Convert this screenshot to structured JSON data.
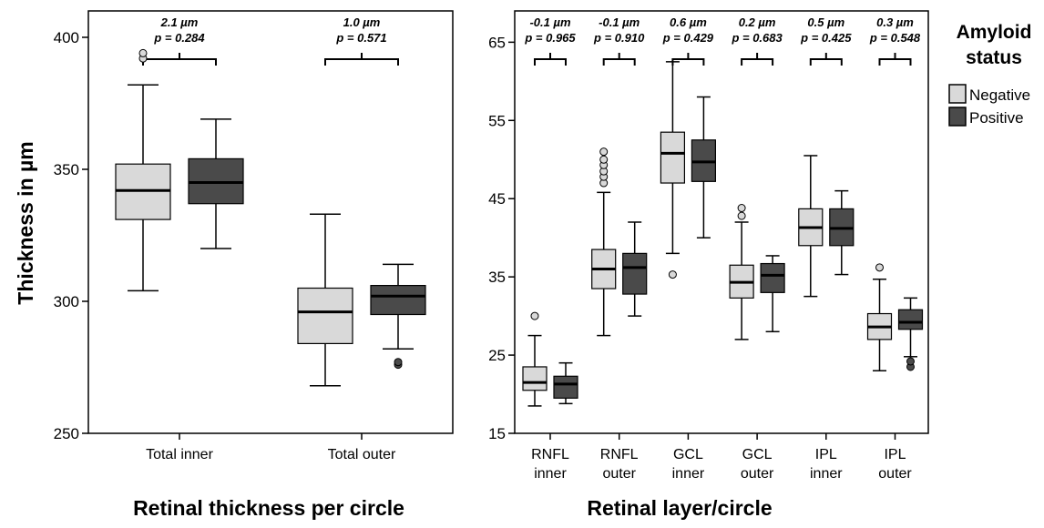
{
  "colors": {
    "negative": "#d9d9d9",
    "positive": "#4a4a4a",
    "outline": "#000000"
  },
  "ylabel": "Thickness in µm",
  "legend": {
    "title_line1": "Amyloid",
    "title_line2": "status",
    "items": [
      {
        "label": "Negative",
        "color": "#d9d9d9"
      },
      {
        "label": "Positive",
        "color": "#4a4a4a"
      }
    ]
  },
  "chart_data": [
    {
      "type": "boxplot",
      "xlabel": "Retinal thickness per circle",
      "ylim": [
        250,
        410
      ],
      "yticks": [
        250,
        300,
        350,
        400
      ],
      "categories": [
        {
          "label_lines": [
            "Total inner"
          ],
          "diff": "2.1 µm",
          "p": "p = 0.284",
          "negative": {
            "min": 304,
            "q1": 331,
            "median": 342,
            "q3": 352,
            "max": 382,
            "outliers": [
              392,
              394
            ]
          },
          "positive": {
            "min": 320,
            "q1": 337,
            "median": 345,
            "q3": 354,
            "max": 369,
            "outliers": []
          }
        },
        {
          "label_lines": [
            "Total outer"
          ],
          "diff": "1.0 µm",
          "p": "p = 0.571",
          "negative": {
            "min": 268,
            "q1": 284,
            "median": 296,
            "q3": 305,
            "max": 333,
            "outliers": []
          },
          "positive": {
            "min": 282,
            "q1": 295,
            "median": 302,
            "q3": 306,
            "max": 314,
            "outliers": [
              276,
              277
            ]
          }
        }
      ]
    },
    {
      "type": "boxplot",
      "xlabel": "Retinal layer/circle",
      "ylim": [
        15,
        69
      ],
      "yticks": [
        15,
        25,
        35,
        45,
        55,
        65
      ],
      "categories": [
        {
          "label_lines": [
            "RNFL",
            "inner"
          ],
          "diff": "-0.1 µm",
          "p": "p = 0.965",
          "negative": {
            "min": 18.5,
            "q1": 20.5,
            "median": 21.5,
            "q3": 23.5,
            "max": 27.5,
            "outliers": [
              30
            ]
          },
          "positive": {
            "min": 18.8,
            "q1": 19.5,
            "median": 21.3,
            "q3": 22.3,
            "max": 24,
            "outliers": []
          }
        },
        {
          "label_lines": [
            "RNFL",
            "outer"
          ],
          "diff": "-0.1 µm",
          "p": "p = 0.910",
          "negative": {
            "min": 27.5,
            "q1": 33.5,
            "median": 36,
            "q3": 38.5,
            "max": 45.8,
            "outliers": [
              47,
              47.8,
              48.5,
              49.3,
              50,
              51
            ]
          },
          "positive": {
            "min": 30,
            "q1": 32.8,
            "median": 36.2,
            "q3": 38,
            "max": 42,
            "outliers": []
          }
        },
        {
          "label_lines": [
            "GCL",
            "inner"
          ],
          "diff": "0.6 µm",
          "p": "p = 0.429",
          "negative": {
            "min": 38,
            "q1": 47,
            "median": 50.8,
            "q3": 53.5,
            "max": 62.5,
            "outliers": [
              35.3
            ]
          },
          "positive": {
            "min": 40,
            "q1": 47.2,
            "median": 49.7,
            "q3": 52.5,
            "max": 58,
            "outliers": []
          }
        },
        {
          "label_lines": [
            "GCL",
            "outer"
          ],
          "diff": "0.2 µm",
          "p": "p = 0.683",
          "negative": {
            "min": 27,
            "q1": 32.3,
            "median": 34.3,
            "q3": 36.5,
            "max": 42,
            "outliers": [
              42.8,
              43.8
            ]
          },
          "positive": {
            "min": 28,
            "q1": 33,
            "median": 35.2,
            "q3": 36.7,
            "max": 37.7,
            "outliers": []
          }
        },
        {
          "label_lines": [
            "IPL",
            "inner"
          ],
          "diff": "0.5 µm",
          "p": "p = 0.425",
          "negative": {
            "min": 32.5,
            "q1": 39,
            "median": 41.3,
            "q3": 43.7,
            "max": 50.5,
            "outliers": []
          },
          "positive": {
            "min": 35.3,
            "q1": 39,
            "median": 41.2,
            "q3": 43.7,
            "max": 46,
            "outliers": []
          }
        },
        {
          "label_lines": [
            "IPL",
            "outer"
          ],
          "diff": "0.3 µm",
          "p": "p = 0.548",
          "negative": {
            "min": 23,
            "q1": 27,
            "median": 28.6,
            "q3": 30.3,
            "max": 34.7,
            "outliers": [
              36.2
            ]
          },
          "positive": {
            "min": 24.8,
            "q1": 28.3,
            "median": 29.2,
            "q3": 30.8,
            "max": 32.3,
            "outliers": [
              23.5,
              24.2
            ]
          }
        }
      ]
    }
  ]
}
